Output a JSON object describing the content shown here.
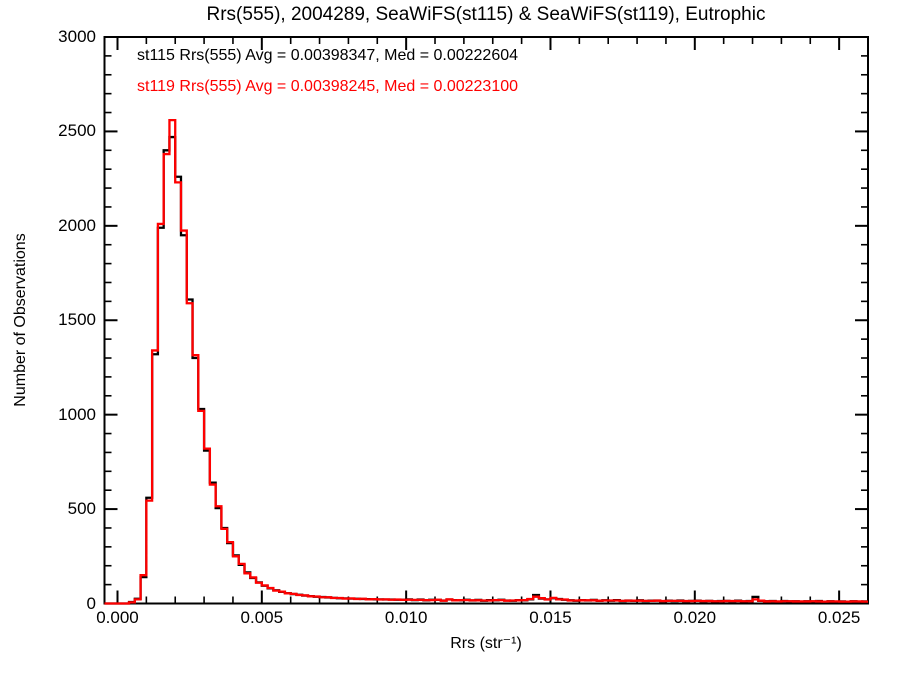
{
  "title": "Rrs(555), 2004289, SeaWiFS(st115) & SeaWiFS(st119), Eutrophic",
  "legend": [
    {
      "label": "st115 Rrs(555) Avg = 0.00398347, Med = 0.00222604",
      "color": "#000000"
    },
    {
      "label": "st119 Rrs(555) Avg = 0.00398245, Med = 0.00223100",
      "color": "#ff0000"
    }
  ],
  "axes": {
    "x": {
      "title": "Rrs (str⁻¹)",
      "tick_labels": [
        "0.000",
        "0.005",
        "0.010",
        "0.015",
        "0.020",
        "0.025"
      ],
      "tick_values": [
        0,
        0.005,
        0.01,
        0.015,
        0.02,
        0.025
      ],
      "minor_tick_interval": 0.001
    },
    "y": {
      "title": "Number of Observations",
      "tick_labels": [
        "0",
        "500",
        "1000",
        "1500",
        "2000",
        "2500",
        "3000"
      ],
      "tick_values": [
        0,
        500,
        1000,
        1500,
        2000,
        2500,
        3000
      ],
      "minor_tick_interval": 100
    }
  },
  "chart_data": {
    "type": "line",
    "style": "step-histogram",
    "title": "Rrs(555), 2004289, SeaWiFS(st115) & SeaWiFS(st119), Eutrophic",
    "xlabel": "Rrs (str⁻¹)",
    "ylabel": "Number of Observations",
    "xlim": [
      -0.00045,
      0.026
    ],
    "ylim": [
      0,
      3000
    ],
    "grid": false,
    "legend_position": "top-left-inside",
    "bin_start": 0,
    "bin_width": 0.0002,
    "series": [
      {
        "name": "st115",
        "color": "#000000",
        "stats": {
          "avg": 0.00398347,
          "med": 0.00222604
        },
        "values": [
          0,
          0,
          8,
          25,
          140,
          560,
          1320,
          1990,
          2400,
          2470,
          2260,
          1950,
          1610,
          1300,
          1030,
          810,
          640,
          505,
          400,
          320,
          255,
          205,
          165,
          135,
          112,
          94,
          80,
          70,
          62,
          55,
          50,
          46,
          42,
          39,
          36,
          34,
          32,
          30,
          28,
          27,
          26,
          25,
          24,
          23,
          22,
          22,
          21,
          21,
          20,
          20,
          22,
          18,
          21,
          17,
          20,
          19,
          16,
          21,
          18,
          17,
          20,
          16,
          19,
          15,
          18,
          17,
          20,
          16,
          15,
          18,
          17,
          22,
          45,
          26,
          22,
          28,
          24,
          20,
          17,
          15,
          18,
          16,
          19,
          14,
          17,
          15,
          18,
          13,
          16,
          14,
          17,
          13,
          15,
          16,
          12,
          15,
          13,
          16,
          12,
          14,
          15,
          12,
          14,
          11,
          13,
          14,
          12,
          15,
          11,
          13,
          35,
          14,
          12,
          13,
          10,
          13,
          11,
          12,
          10,
          12,
          11,
          13,
          9,
          12,
          10,
          11,
          9,
          12,
          10,
          11
        ]
      },
      {
        "name": "st119",
        "color": "#ff0000",
        "stats": {
          "avg": 0.00398245,
          "med": 0.002231
        },
        "values": [
          0,
          0,
          6,
          22,
          150,
          545,
          1340,
          2010,
          2380,
          2560,
          2230,
          1975,
          1590,
          1315,
          1020,
          820,
          630,
          515,
          395,
          325,
          250,
          210,
          160,
          138,
          110,
          96,
          82,
          68,
          63,
          54,
          51,
          45,
          43,
          38,
          37,
          33,
          33,
          29,
          29,
          26,
          27,
          24,
          25,
          22,
          23,
          21,
          22,
          20,
          21,
          19,
          20,
          19,
          19,
          18,
          18,
          20,
          15,
          22,
          17,
          18,
          18,
          17,
          17,
          16,
          16,
          18,
          18,
          15,
          16,
          17,
          18,
          24,
          36,
          28,
          21,
          30,
          22,
          21,
          16,
          16,
          17,
          17,
          17,
          15,
          16,
          16,
          16,
          14,
          15,
          15,
          15,
          14,
          14,
          15,
          13,
          14,
          14,
          14,
          13,
          13,
          14,
          13,
          13,
          12,
          12,
          13,
          13,
          13,
          12,
          12,
          22,
          15,
          11,
          12,
          11,
          12,
          12,
          11,
          11,
          11,
          12,
          11,
          10,
          11,
          11,
          10,
          10,
          11,
          11,
          10
        ]
      }
    ]
  }
}
